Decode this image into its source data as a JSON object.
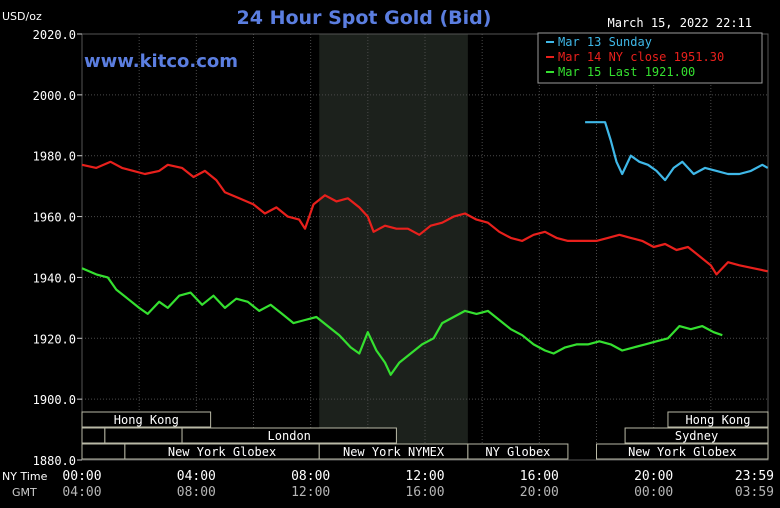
{
  "chart_data": {
    "type": "line",
    "title": "24 Hour Spot Gold (Bid)",
    "ylabel": "USD/oz",
    "timestamp": "March 15, 2022 22:11",
    "watermark": "www.kitco.com",
    "ylim": [
      1880,
      2020
    ],
    "yticks": [
      "2020.0",
      "2000.0",
      "1980.0",
      "1960.0",
      "1940.0",
      "1920.0",
      "1900.0",
      "1880.0"
    ],
    "ytick_values": [
      2020,
      2000,
      1980,
      1960,
      1940,
      1920,
      1900,
      1880
    ],
    "xlim": [
      0,
      24
    ],
    "xtick_hours": [
      0,
      4,
      8,
      12,
      16,
      20,
      24
    ],
    "ny_row_label": "NY Time",
    "gmt_row_label": "GMT",
    "ny_ticks": [
      "00:00",
      "04:00",
      "08:00",
      "12:00",
      "16:00",
      "20:00",
      "23:59"
    ],
    "gmt_ticks": [
      "04:00",
      "08:00",
      "12:00",
      "16:00",
      "20:00",
      "00:00",
      "03:59"
    ],
    "shaded_region": [
      8.3,
      13.5
    ],
    "grid": true,
    "legend_position": "top-right",
    "series": [
      {
        "name": "Mar 13 Sunday",
        "color": "#3fb8e8",
        "points": [
          [
            17.6,
            1991
          ],
          [
            18.3,
            1991
          ],
          [
            18.5,
            1985
          ],
          [
            18.7,
            1978
          ],
          [
            18.9,
            1974
          ],
          [
            19.2,
            1980
          ],
          [
            19.5,
            1978
          ],
          [
            19.8,
            1977
          ],
          [
            20.1,
            1975
          ],
          [
            20.4,
            1972
          ],
          [
            20.7,
            1976
          ],
          [
            21.0,
            1978
          ],
          [
            21.4,
            1974
          ],
          [
            21.8,
            1976
          ],
          [
            22.2,
            1975
          ],
          [
            22.6,
            1974
          ],
          [
            23.0,
            1974
          ],
          [
            23.4,
            1975
          ],
          [
            23.8,
            1977
          ],
          [
            23.99,
            1976
          ]
        ]
      },
      {
        "name": "Mar 14 NY close 1951.30",
        "color": "#e8201c",
        "points": [
          [
            0,
            1977
          ],
          [
            0.5,
            1976
          ],
          [
            1.0,
            1978
          ],
          [
            1.4,
            1976
          ],
          [
            1.8,
            1975
          ],
          [
            2.2,
            1974
          ],
          [
            2.7,
            1975
          ],
          [
            3.0,
            1977
          ],
          [
            3.5,
            1976
          ],
          [
            3.9,
            1973
          ],
          [
            4.3,
            1975
          ],
          [
            4.7,
            1972
          ],
          [
            5.0,
            1968
          ],
          [
            5.5,
            1966
          ],
          [
            6.0,
            1964
          ],
          [
            6.4,
            1961
          ],
          [
            6.8,
            1963
          ],
          [
            7.2,
            1960
          ],
          [
            7.6,
            1959
          ],
          [
            7.8,
            1956
          ],
          [
            8.1,
            1964
          ],
          [
            8.5,
            1967
          ],
          [
            8.9,
            1965
          ],
          [
            9.3,
            1966
          ],
          [
            9.7,
            1963
          ],
          [
            10.0,
            1960
          ],
          [
            10.2,
            1955
          ],
          [
            10.6,
            1957
          ],
          [
            11.0,
            1956
          ],
          [
            11.4,
            1956
          ],
          [
            11.8,
            1954
          ],
          [
            12.2,
            1957
          ],
          [
            12.6,
            1958
          ],
          [
            13.0,
            1960
          ],
          [
            13.4,
            1961
          ],
          [
            13.8,
            1959
          ],
          [
            14.2,
            1958
          ],
          [
            14.6,
            1955
          ],
          [
            15.0,
            1953
          ],
          [
            15.4,
            1952
          ],
          [
            15.8,
            1954
          ],
          [
            16.2,
            1955
          ],
          [
            16.6,
            1953
          ],
          [
            17.0,
            1952
          ],
          [
            17.5,
            1952
          ],
          [
            18.0,
            1952
          ],
          [
            18.4,
            1953
          ],
          [
            18.8,
            1954
          ],
          [
            19.2,
            1953
          ],
          [
            19.6,
            1952
          ],
          [
            20.0,
            1950
          ],
          [
            20.4,
            1951
          ],
          [
            20.8,
            1949
          ],
          [
            21.2,
            1950
          ],
          [
            21.6,
            1947
          ],
          [
            22.0,
            1944
          ],
          [
            22.2,
            1941
          ],
          [
            22.6,
            1945
          ],
          [
            23.0,
            1944
          ],
          [
            23.5,
            1943
          ],
          [
            23.99,
            1942
          ]
        ]
      },
      {
        "name": "Mar 15 Last 1921.00",
        "color": "#35e030",
        "points": [
          [
            0,
            1943
          ],
          [
            0.5,
            1941
          ],
          [
            0.9,
            1940
          ],
          [
            1.2,
            1936
          ],
          [
            1.6,
            1933
          ],
          [
            2.0,
            1930
          ],
          [
            2.3,
            1928
          ],
          [
            2.7,
            1932
          ],
          [
            3.0,
            1930
          ],
          [
            3.4,
            1934
          ],
          [
            3.8,
            1935
          ],
          [
            4.2,
            1931
          ],
          [
            4.6,
            1934
          ],
          [
            5.0,
            1930
          ],
          [
            5.4,
            1933
          ],
          [
            5.8,
            1932
          ],
          [
            6.2,
            1929
          ],
          [
            6.6,
            1931
          ],
          [
            7.0,
            1928
          ],
          [
            7.4,
            1925
          ],
          [
            7.8,
            1926
          ],
          [
            8.2,
            1927
          ],
          [
            8.6,
            1924
          ],
          [
            9.0,
            1921
          ],
          [
            9.4,
            1917
          ],
          [
            9.7,
            1915
          ],
          [
            10.0,
            1922
          ],
          [
            10.3,
            1916
          ],
          [
            10.6,
            1912
          ],
          [
            10.8,
            1908
          ],
          [
            11.1,
            1912
          ],
          [
            11.5,
            1915
          ],
          [
            11.9,
            1918
          ],
          [
            12.3,
            1920
          ],
          [
            12.6,
            1925
          ],
          [
            13.0,
            1927
          ],
          [
            13.4,
            1929
          ],
          [
            13.8,
            1928
          ],
          [
            14.2,
            1929
          ],
          [
            14.6,
            1926
          ],
          [
            15.0,
            1923
          ],
          [
            15.4,
            1921
          ],
          [
            15.8,
            1918
          ],
          [
            16.2,
            1916
          ],
          [
            16.5,
            1915
          ],
          [
            16.9,
            1917
          ],
          [
            17.3,
            1918
          ],
          [
            17.7,
            1918
          ],
          [
            18.1,
            1919
          ],
          [
            18.5,
            1918
          ],
          [
            18.9,
            1916
          ],
          [
            19.3,
            1917
          ],
          [
            19.7,
            1918
          ],
          [
            20.1,
            1919
          ],
          [
            20.5,
            1920
          ],
          [
            20.9,
            1924
          ],
          [
            21.3,
            1923
          ],
          [
            21.7,
            1924
          ],
          [
            22.1,
            1922
          ],
          [
            22.4,
            1921
          ]
        ]
      }
    ],
    "sessions": [
      {
        "label": "Hong Kong",
        "row": 0,
        "start": 0,
        "end": 4.5
      },
      {
        "label": "",
        "row": 1,
        "start": 0,
        "end": 0.8
      },
      {
        "label": "",
        "row": 1,
        "start": 0.8,
        "end": 3.5
      },
      {
        "label": "London",
        "row": 1,
        "start": 3.5,
        "end": 11.0
      },
      {
        "label": "",
        "row": 2,
        "start": 0,
        "end": 1.5
      },
      {
        "label": "New York Globex",
        "row": 2,
        "start": 1.5,
        "end": 8.3
      },
      {
        "label": "New York NYMEX",
        "row": 2,
        "start": 8.3,
        "end": 13.5
      },
      {
        "label": "NY Globex",
        "row": 2,
        "start": 13.5,
        "end": 17.0
      },
      {
        "label": "Hong Kong",
        "row": 0,
        "start": 20.5,
        "end": 24
      },
      {
        "label": "Sydney",
        "row": 1,
        "start": 19.0,
        "end": 24
      },
      {
        "label": "New York Globex",
        "row": 2,
        "start": 18.0,
        "end": 24
      }
    ]
  }
}
